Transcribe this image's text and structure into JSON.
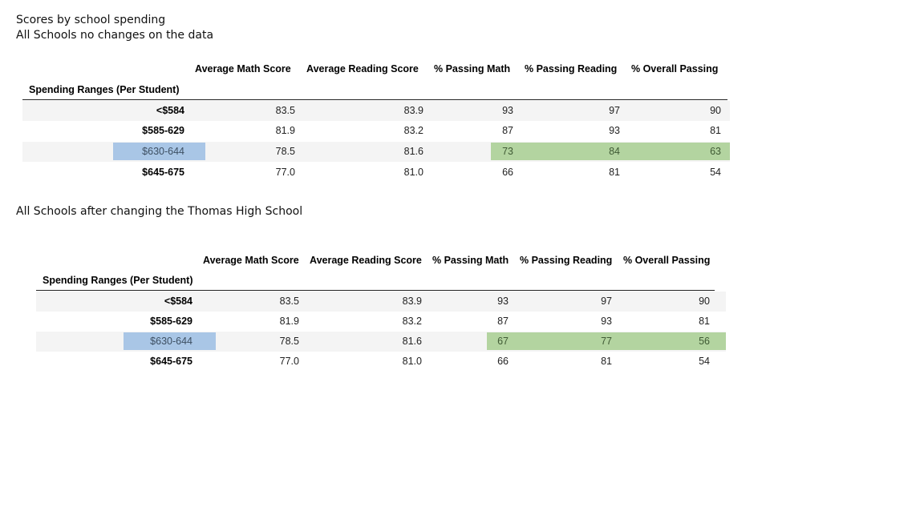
{
  "headings": {
    "line1": "Scores by school spending",
    "line2": "All Schools no changes on the data",
    "line3": "All Schools after changing the Thomas High School"
  },
  "colors": {
    "blue_highlight": "#a9c6e6",
    "green_highlight": "#b3d4a0"
  },
  "table1": {
    "index_header": "Spending Ranges (Per Student)",
    "columns": [
      "Average Math Score",
      "Average Reading Score",
      "% Passing Math",
      "% Passing Reading",
      "% Overall Passing"
    ],
    "rows": [
      {
        "label": "<$584",
        "values": [
          "83.5",
          "83.9",
          "93",
          "97",
          "90"
        ]
      },
      {
        "label": "$585-629",
        "values": [
          "81.9",
          "83.2",
          "87",
          "93",
          "81"
        ]
      },
      {
        "label": "$630-644",
        "values": [
          "78.5",
          "81.6",
          "73",
          "84",
          "63"
        ]
      },
      {
        "label": "$645-675",
        "values": [
          "77.0",
          "81.0",
          "66",
          "81",
          "54"
        ]
      }
    ]
  },
  "table2": {
    "index_header": "Spending Ranges (Per Student)",
    "columns": [
      "Average Math Score",
      "Average Reading Score",
      "% Passing Math",
      "% Passing Reading",
      "% Overall Passing"
    ],
    "rows": [
      {
        "label": "<$584",
        "values": [
          "83.5",
          "83.9",
          "93",
          "97",
          "90"
        ]
      },
      {
        "label": "$585-629",
        "values": [
          "81.9",
          "83.2",
          "87",
          "93",
          "81"
        ]
      },
      {
        "label": "$630-644",
        "values": [
          "78.5",
          "81.6",
          "67",
          "77",
          "56"
        ]
      },
      {
        "label": "$645-675",
        "values": [
          "77.0",
          "81.0",
          "66",
          "81",
          "54"
        ]
      }
    ]
  }
}
